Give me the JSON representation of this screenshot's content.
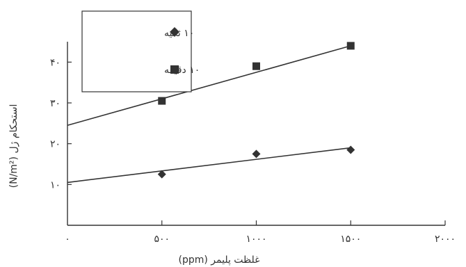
{
  "chart_data": {
    "type": "scatter",
    "xlabel": "غلظت پلیمر (ppm)",
    "ylabel": "استحکام ژل (N/m²)",
    "xlim": [
      0,
      2000
    ],
    "ylim": [
      0,
      45
    ],
    "x_ticks": [
      {
        "value": 0,
        "label": "۰"
      },
      {
        "value": 500,
        "label": "۵۰۰"
      },
      {
        "value": 1000,
        "label": "۱۰۰۰"
      },
      {
        "value": 1500,
        "label": "۱۵۰۰"
      },
      {
        "value": 2000,
        "label": "۲۰۰۰"
      }
    ],
    "y_ticks": [
      {
        "value": 10,
        "label": "۱۰"
      },
      {
        "value": 20,
        "label": "۲۰"
      },
      {
        "value": 30,
        "label": "۳۰"
      },
      {
        "value": 40,
        "label": "۴۰"
      }
    ],
    "grid": false,
    "legend_position": "top-left",
    "series": [
      {
        "name": "۱۰ ثانیه",
        "marker": "diamond",
        "x": [
          500,
          1000,
          1500
        ],
        "y": [
          12.5,
          17.5,
          18.5
        ],
        "trend": {
          "x": [
            0,
            1500
          ],
          "y": [
            10.5,
            19.0
          ]
        }
      },
      {
        "name": "۱۰ دقیقه",
        "marker": "square",
        "x": [
          500,
          1000,
          1500
        ],
        "y": [
          30.5,
          39.0,
          44.0
        ],
        "trend": {
          "x": [
            0,
            1500
          ],
          "y": [
            24.5,
            44.0
          ]
        }
      }
    ]
  }
}
